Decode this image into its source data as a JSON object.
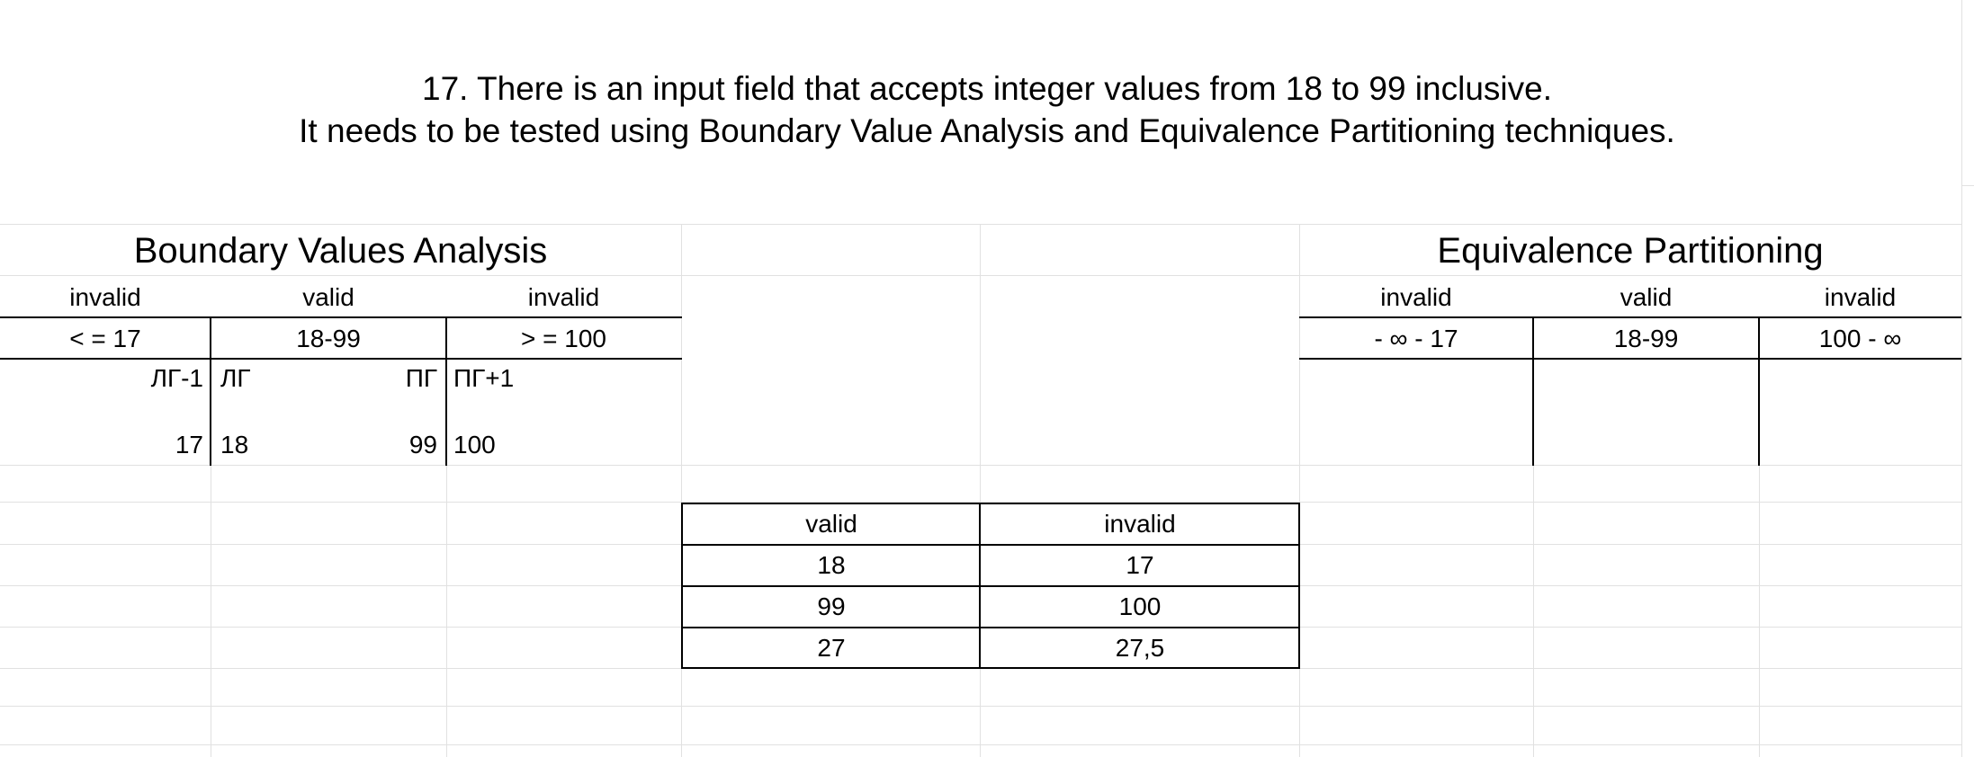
{
  "title": {
    "line1": "17. There is an input field that accepts integer values from 18 to 99 inclusive.",
    "line2": "It needs to be tested using Boundary Value Analysis and Equivalence Partitioning techniques."
  },
  "bva": {
    "header": "Boundary Values Analysis",
    "classes": [
      "invalid",
      "valid",
      "invalid"
    ],
    "ranges": [
      "< = 17",
      "18-99",
      "> = 100"
    ],
    "boundary_labels": [
      "ЛГ-1",
      "ЛГ",
      "ПГ",
      "ПГ+1"
    ],
    "boundary_values": [
      "17",
      "18",
      "99",
      "100"
    ]
  },
  "ep": {
    "header": "Equivalence Partitioning",
    "classes": [
      "invalid",
      "valid",
      "invalid"
    ],
    "ranges": [
      "- ∞ - 17",
      "18-99",
      "100 - ∞"
    ]
  },
  "test_table": {
    "headers": [
      "valid",
      "invalid"
    ],
    "rows": [
      [
        "18",
        "17"
      ],
      [
        "99",
        "100"
      ],
      [
        "27",
        "27,5"
      ]
    ]
  }
}
